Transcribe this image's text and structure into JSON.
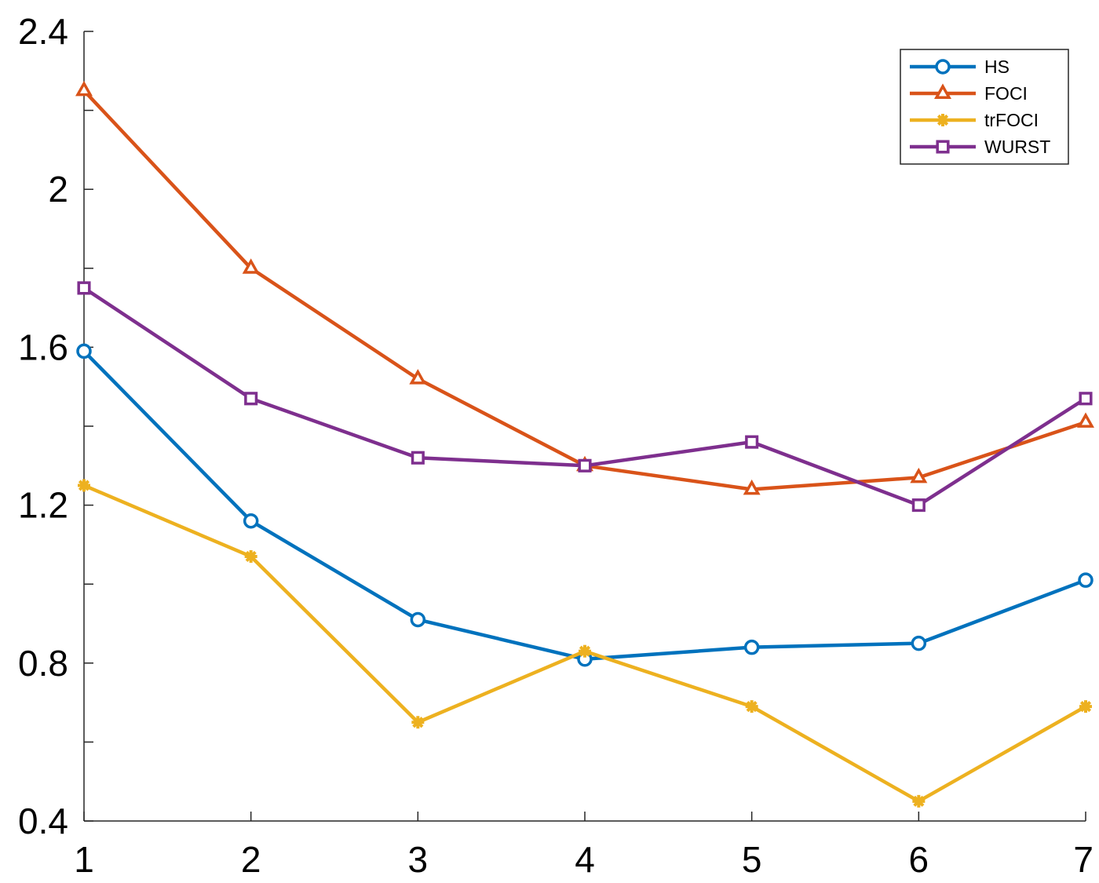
{
  "chart_data": {
    "type": "line",
    "title": "",
    "xlabel": "",
    "ylabel": "",
    "x": [
      1,
      2,
      3,
      4,
      5,
      6,
      7
    ],
    "xlim": [
      1,
      7
    ],
    "ylim": [
      0.4,
      2.4
    ],
    "xticks": [
      "1",
      "2",
      "3",
      "4",
      "5",
      "6",
      "7"
    ],
    "yticks": [
      "0.4",
      "0.8",
      "1.2",
      "1.6",
      "2",
      "2.4"
    ],
    "ytick_values": [
      0.4,
      0.8,
      1.2,
      1.6,
      2.0,
      2.4
    ],
    "yminor_values": [
      0.6,
      1.0,
      1.4,
      1.8,
      2.2
    ],
    "grid": false,
    "legend_position": "top-right",
    "series": [
      {
        "name": "HS",
        "color": "#0072BD",
        "marker": "circle",
        "values": [
          1.59,
          1.16,
          0.91,
          0.81,
          0.84,
          0.85,
          1.01
        ]
      },
      {
        "name": "FOCI",
        "color": "#D95319",
        "marker": "triangle",
        "values": [
          2.25,
          1.8,
          1.52,
          1.3,
          1.24,
          1.27,
          1.41
        ]
      },
      {
        "name": "trFOCI",
        "color": "#EDB120",
        "marker": "asterisk",
        "values": [
          1.25,
          1.07,
          0.65,
          0.83,
          0.69,
          0.45,
          0.69
        ]
      },
      {
        "name": "WURST",
        "color": "#7E2F8E",
        "marker": "square",
        "values": [
          1.75,
          1.47,
          1.32,
          1.3,
          1.36,
          1.2,
          1.47
        ]
      }
    ]
  }
}
